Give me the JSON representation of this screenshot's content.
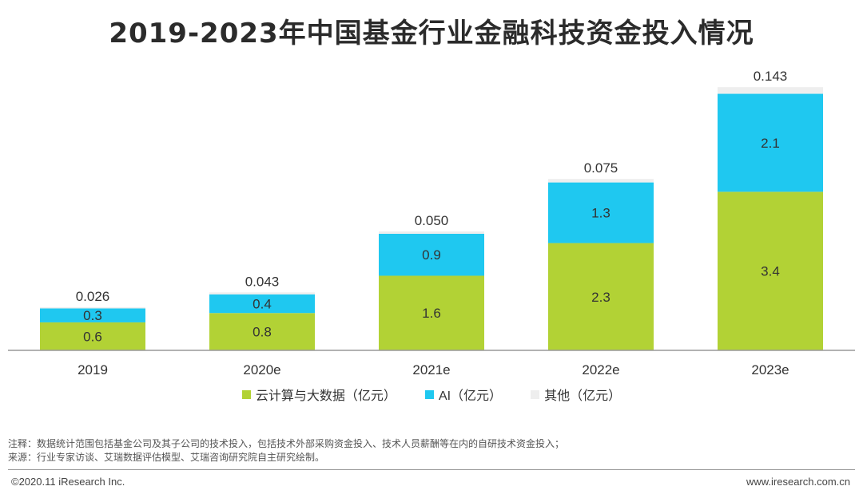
{
  "title": "2019-2023年中国基金行业金融科技资金投入情况",
  "chart_data": {
    "type": "bar",
    "stacked": true,
    "categories": [
      "2019",
      "2020e",
      "2021e",
      "2022e",
      "2023e"
    ],
    "series": [
      {
        "name": "云计算与大数据（亿元）",
        "color": "#b2d235",
        "values": [
          0.6,
          0.8,
          1.6,
          2.3,
          3.4
        ],
        "labels": [
          "0.6",
          "0.8",
          "1.6",
          "2.3",
          "3.4"
        ]
      },
      {
        "name": "AI（亿元）",
        "color": "#1fc8f0",
        "values": [
          0.3,
          0.4,
          0.9,
          1.3,
          2.1
        ],
        "labels": [
          "0.3",
          "0.4",
          "0.9",
          "1.3",
          "2.1"
        ]
      },
      {
        "name": "其他（亿元）",
        "color": "#eeeeee",
        "values": [
          0.026,
          0.043,
          0.05,
          0.075,
          0.143
        ],
        "labels": [
          "0.026",
          "0.043",
          "0.050",
          "0.075",
          "0.143"
        ]
      }
    ],
    "ylim": [
      0,
      5.8
    ],
    "grid": false,
    "legend": "bottom"
  },
  "notes": {
    "note": "注释：数据统计范围包括基金公司及其子公司的技术投入，包括技术外部采购资金投入、技术人员薪酬等在内的自研技术资金投入；",
    "source": "来源：行业专家访谈、艾瑞数据评估模型、艾瑞咨询研究院自主研究绘制。"
  },
  "footer": {
    "copyright": "©2020.11 iResearch Inc.",
    "website": "www.iresearch.com.cn"
  }
}
